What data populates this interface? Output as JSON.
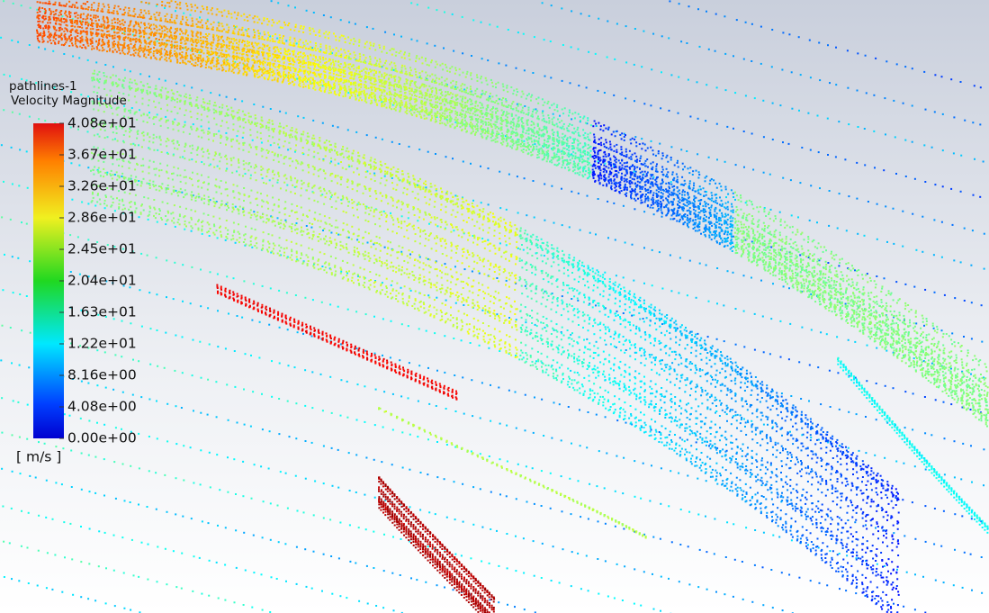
{
  "legend": {
    "title": "pathlines-1",
    "variable": "Velocity Magnitude",
    "ticks": [
      "4.08e+01",
      "3.67e+01",
      "3.26e+01",
      "2.86e+01",
      "2.45e+01",
      "2.04e+01",
      "1.63e+01",
      "1.22e+01",
      "8.16e+00",
      "4.08e+00",
      "0.00e+00"
    ],
    "unit": "[ m/s ]"
  }
}
